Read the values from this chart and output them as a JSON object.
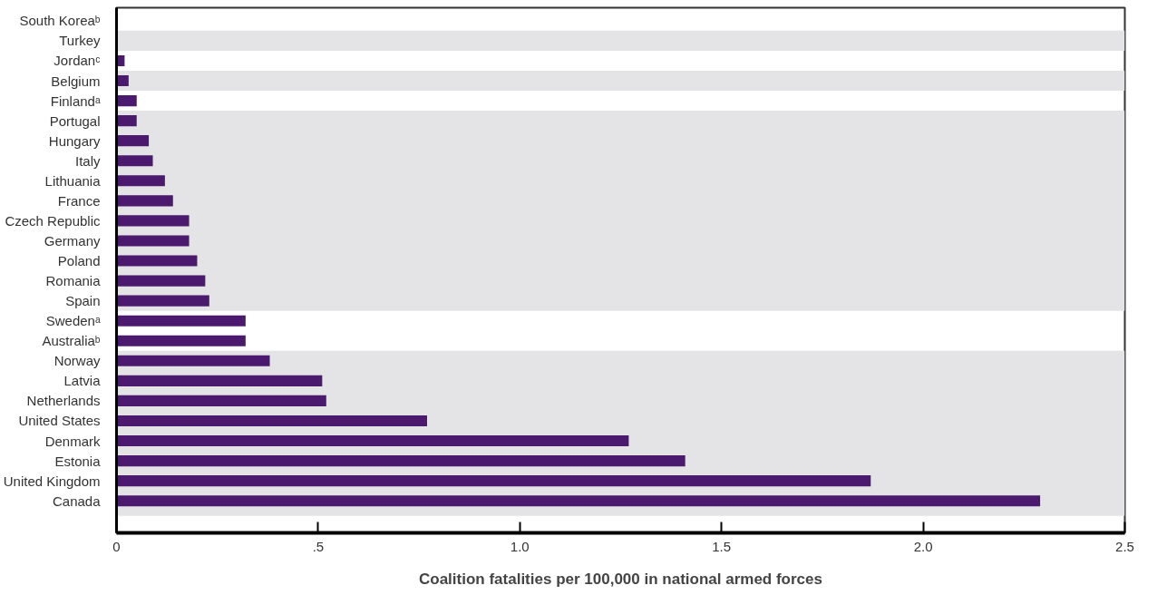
{
  "chart_data": {
    "type": "bar",
    "orientation": "horizontal",
    "xlabel": "Coalition fatalities per 100,000 in national armed forces",
    "categories": [
      "South Koreaᵇ",
      "Turkey",
      "Jordanᶜ",
      "Belgium",
      "Finlandᵃ",
      "Portugal",
      "Hungary",
      "Italy",
      "Lithuania",
      "France",
      "Czech Republic",
      "Germany",
      "Poland",
      "Romania",
      "Spain",
      "Swedenᵃ",
      "Australiaᵇ",
      "Norway",
      "Latvia",
      "Netherlands",
      "United States",
      "Denmark",
      "Estonia",
      "United Kingdom",
      "Canada"
    ],
    "values": [
      0,
      0,
      0.02,
      0.03,
      0.05,
      0.05,
      0.08,
      0.09,
      0.12,
      0.14,
      0.18,
      0.18,
      0.2,
      0.22,
      0.23,
      0.32,
      0.32,
      0.38,
      0.51,
      0.52,
      0.77,
      1.27,
      1.41,
      1.87,
      2.29
    ],
    "color": "#4b1a6e",
    "xlim": [
      0,
      2.5
    ],
    "xticks": [
      0,
      {
        "value": 0.5,
        "label": ".5"
      },
      {
        "value": 1,
        "label": "1.0"
      },
      1.5,
      {
        "value": 2,
        "label": "2.0"
      },
      2.5
    ],
    "bands": [
      {
        "axis": "y",
        "from": "Turkey",
        "to": "Turkey",
        "color": "#e4e4e6"
      },
      {
        "axis": "y",
        "from": "Belgium",
        "to": "Belgium",
        "color": "#e4e4e6"
      },
      {
        "axis": "y",
        "from": "Portugal",
        "to": "Spain",
        "color": "#e4e4e6"
      },
      {
        "axis": "y",
        "from": "Norway",
        "to": "Canada",
        "color": "#e4e4e6"
      }
    ],
    "grid": false
  }
}
